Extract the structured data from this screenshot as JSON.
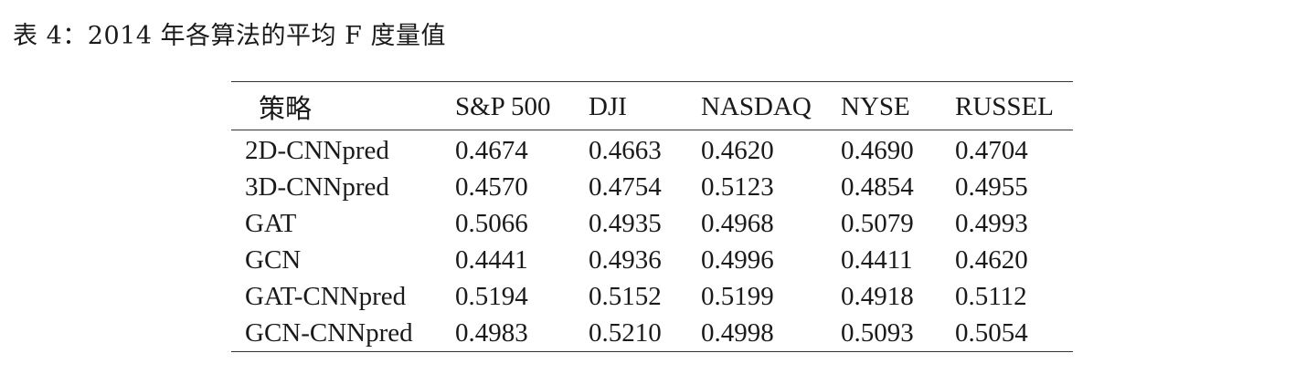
{
  "caption": {
    "label": "表 4：",
    "text": "2014 年各算法的平均 F 度量值"
  },
  "table": {
    "headers": [
      "策略",
      "S&P 500",
      "DJI",
      "NASDAQ",
      "NYSE",
      "RUSSEL"
    ],
    "rows": [
      [
        "2D-CNNpred",
        "0.4674",
        "0.4663",
        "0.4620",
        "0.4690",
        "0.4704"
      ],
      [
        "3D-CNNpred",
        "0.4570",
        "0.4754",
        "0.5123",
        "0.4854",
        "0.4955"
      ],
      [
        "GAT",
        "0.5066",
        "0.4935",
        "0.4968",
        "0.5079",
        "0.4993"
      ],
      [
        "GCN",
        "0.4441",
        "0.4936",
        "0.4996",
        "0.4411",
        "0.4620"
      ],
      [
        "GAT-CNNpred",
        "0.5194",
        "0.5152",
        "0.5199",
        "0.4918",
        "0.5112"
      ],
      [
        "GCN-CNNpred",
        "0.4983",
        "0.5210",
        "0.4998",
        "0.5093",
        "0.5054"
      ]
    ]
  }
}
